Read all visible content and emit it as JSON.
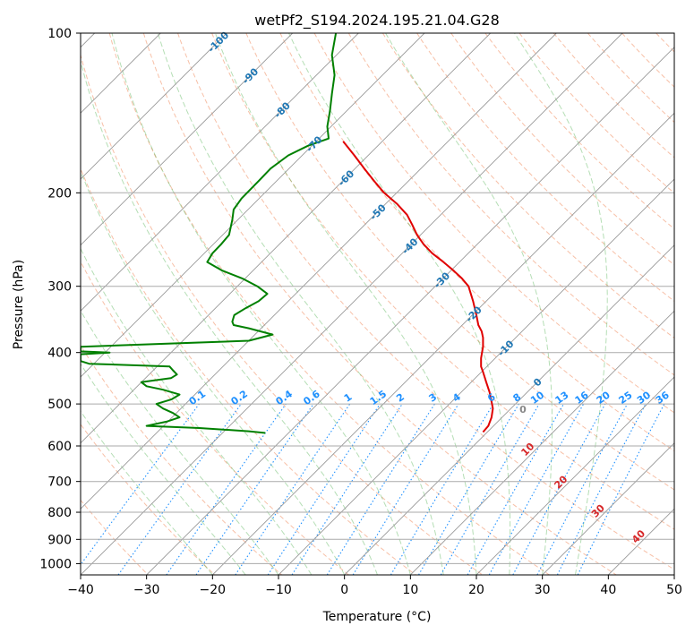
{
  "chart_data": {
    "type": "line",
    "title": "wetPf2_S194.2024.195.21.04.G28",
    "xlabel": "Temperature (°C)",
    "ylabel": "Pressure (hPa)",
    "xlim": [
      -40,
      50
    ],
    "ylim": [
      1050,
      100
    ],
    "y_scale": "log",
    "grid": true,
    "x_ticks": [
      -40,
      -30,
      -20,
      -10,
      0,
      10,
      20,
      30,
      40,
      50
    ],
    "y_ticks": [
      100,
      200,
      300,
      400,
      500,
      600,
      700,
      800,
      900,
      1000
    ],
    "skew": 45,
    "series": [
      {
        "color": "#e00000",
        "points": [
          [
            -0.2,
            160
          ],
          [
            1.5,
            170
          ],
          [
            3.0,
            180
          ],
          [
            4.5,
            190
          ],
          [
            6.0,
            200
          ],
          [
            8.0,
            210
          ],
          [
            9.5,
            220
          ],
          [
            10.3,
            230
          ],
          [
            11.0,
            240
          ],
          [
            12.0,
            250
          ],
          [
            13.3,
            260
          ],
          [
            15.0,
            270
          ],
          [
            16.5,
            280
          ],
          [
            17.8,
            290
          ],
          [
            18.8,
            300
          ],
          [
            19.5,
            320
          ],
          [
            20.0,
            340
          ],
          [
            20.3,
            355
          ],
          [
            20.8,
            365
          ],
          [
            21.0,
            375
          ],
          [
            21.0,
            390
          ],
          [
            20.7,
            410
          ],
          [
            20.7,
            425
          ],
          [
            21.0,
            435
          ],
          [
            21.5,
            455
          ],
          [
            22.0,
            475
          ],
          [
            22.3,
            495
          ],
          [
            22.5,
            510
          ],
          [
            22.3,
            530
          ],
          [
            21.8,
            550
          ],
          [
            21.0,
            565
          ]
        ]
      },
      {
        "color": "#008000",
        "points": [
          [
            -1.3,
            100
          ],
          [
            -1.9,
            110
          ],
          [
            -1.5,
            120
          ],
          [
            -1.9,
            130
          ],
          [
            -2.2,
            140
          ],
          [
            -2.6,
            150
          ],
          [
            -2.4,
            158
          ],
          [
            -5.5,
            163
          ],
          [
            -8.5,
            170
          ],
          [
            -11.2,
            180
          ],
          [
            -13.0,
            190
          ],
          [
            -15.6,
            205
          ],
          [
            -16.8,
            215
          ],
          [
            -17.0,
            225
          ],
          [
            -17.5,
            240
          ],
          [
            -18.7,
            250
          ],
          [
            -20.0,
            260
          ],
          [
            -20.8,
            270
          ],
          [
            -18.6,
            280
          ],
          [
            -15.5,
            290
          ],
          [
            -13.2,
            300
          ],
          [
            -11.7,
            310
          ],
          [
            -13.0,
            320
          ],
          [
            -15.0,
            330
          ],
          [
            -16.7,
            340
          ],
          [
            -17.0,
            350
          ],
          [
            -16.8,
            355
          ],
          [
            -14.5,
            360
          ],
          [
            -10.9,
            370
          ],
          [
            -14.5,
            380
          ],
          [
            -40.0,
            390
          ],
          [
            -40.0,
            398
          ],
          [
            -35.6,
            400
          ],
          [
            -40.0,
            403
          ],
          [
            -40.0,
            410
          ],
          [
            -40.0,
            415
          ],
          [
            -38.7,
            420
          ],
          [
            -26.5,
            425
          ],
          [
            -26.0,
            432
          ],
          [
            -25.4,
            440
          ],
          [
            -26.3,
            447
          ],
          [
            -30.8,
            455
          ],
          [
            -30.0,
            463
          ],
          [
            -27.5,
            470
          ],
          [
            -25.0,
            480
          ],
          [
            -26.2,
            490
          ],
          [
            -28.5,
            500
          ],
          [
            -27.5,
            510
          ],
          [
            -26.0,
            520
          ],
          [
            -25.0,
            530
          ],
          [
            -27.0,
            540
          ],
          [
            -30.0,
            550
          ],
          [
            -22.0,
            555
          ],
          [
            -14.5,
            563
          ],
          [
            -12.0,
            567
          ]
        ]
      }
    ],
    "dry_adiabats_K": [
      210,
      220,
      230,
      240,
      250,
      260,
      270,
      280,
      290,
      300,
      310,
      320,
      330,
      340,
      350,
      360,
      370,
      380,
      390,
      400,
      410,
      420,
      430,
      440,
      450,
      460
    ],
    "moist_adiabats_C": [
      -20,
      -15,
      -10,
      -5,
      0,
      5,
      10,
      15,
      20,
      25,
      30,
      35
    ],
    "mixing_ratio_labels": [
      "0.1",
      "0.2",
      "0.4",
      "0.6",
      "1",
      "1.5",
      "2",
      "3",
      "4",
      "6",
      "8",
      "10",
      "13",
      "16",
      "20",
      "25",
      "30",
      "36"
    ],
    "isotherm_labels_blue": [
      "-100",
      "-90",
      "-80",
      "-70",
      "-60",
      "-50",
      "-40",
      "-30",
      "-20",
      "-10",
      "0"
    ],
    "isotherm_labels_red": [
      "10",
      "20",
      "30",
      "40"
    ],
    "annotations": {
      "zero_label": "0"
    },
    "colors": {
      "temperature": "#e00000",
      "dewpoint": "#008000",
      "dry_adiabat": "#f4a582",
      "moist_adiabat": "#2ca02c",
      "mixing_ratio": "#1e90ff",
      "isotherm": "#808080",
      "label_blue": "#1f77b4",
      "label_red": "#d62728"
    }
  }
}
